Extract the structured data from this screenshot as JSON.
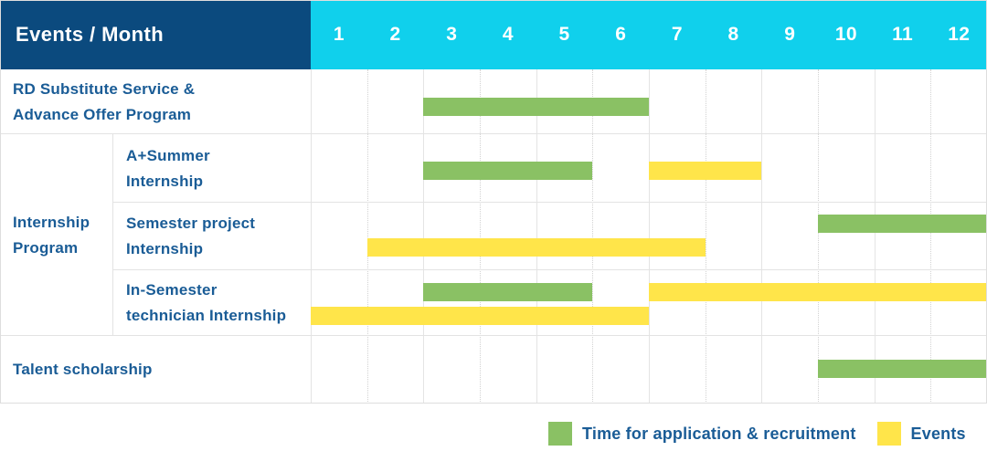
{
  "header": {
    "title": "Events / Month",
    "months": [
      "1",
      "2",
      "3",
      "4",
      "5",
      "6",
      "7",
      "8",
      "9",
      "10",
      "11",
      "12"
    ]
  },
  "colors": {
    "navy": "#0b4a7e",
    "cyan": "#10d0ec",
    "green": "#8ac164",
    "yellow": "#ffe54a",
    "label_blue": "#1a5c96"
  },
  "legend": [
    {
      "swatch_color": "#8ac164",
      "label": "Time for application & recruitment"
    },
    {
      "swatch_color": "#ffe54a",
      "label": "Events"
    }
  ],
  "chart_data": {
    "type": "bar",
    "variant": "gantt",
    "x_axis_unit": "month",
    "x_range": [
      1,
      12
    ],
    "bar_types": {
      "application": "Time for application & recruitment",
      "event": "Events"
    },
    "rows": [
      {
        "group": null,
        "label": "RD Substitute Service &\nAdvance Offer Program",
        "bars": [
          {
            "type": "application",
            "start": 3,
            "end": 6,
            "lane": 0
          }
        ]
      },
      {
        "group": "Internship Program",
        "label": "A+Summer\nInternship",
        "bars": [
          {
            "type": "application",
            "start": 3,
            "end": 5,
            "lane": 0
          },
          {
            "type": "event",
            "start": 7,
            "end": 8,
            "lane": 0
          }
        ]
      },
      {
        "group": "Internship Program",
        "label": "Semester project\nInternship",
        "bars": [
          {
            "type": "application",
            "start": 10,
            "end": 12,
            "lane": 0
          },
          {
            "type": "event",
            "start": 2,
            "end": 7,
            "lane": 1
          }
        ]
      },
      {
        "group": "Internship Program",
        "label": "In-Semester\ntechnician Internship",
        "bars": [
          {
            "type": "application",
            "start": 3,
            "end": 5,
            "lane": 0
          },
          {
            "type": "event",
            "start": 7,
            "end": 12,
            "lane": 0
          },
          {
            "type": "event",
            "start": 1,
            "end": 6,
            "lane": 1
          }
        ]
      },
      {
        "group": null,
        "label": "Talent scholarship",
        "bars": [
          {
            "type": "application",
            "start": 10,
            "end": 12,
            "lane": 0
          }
        ]
      }
    ]
  }
}
